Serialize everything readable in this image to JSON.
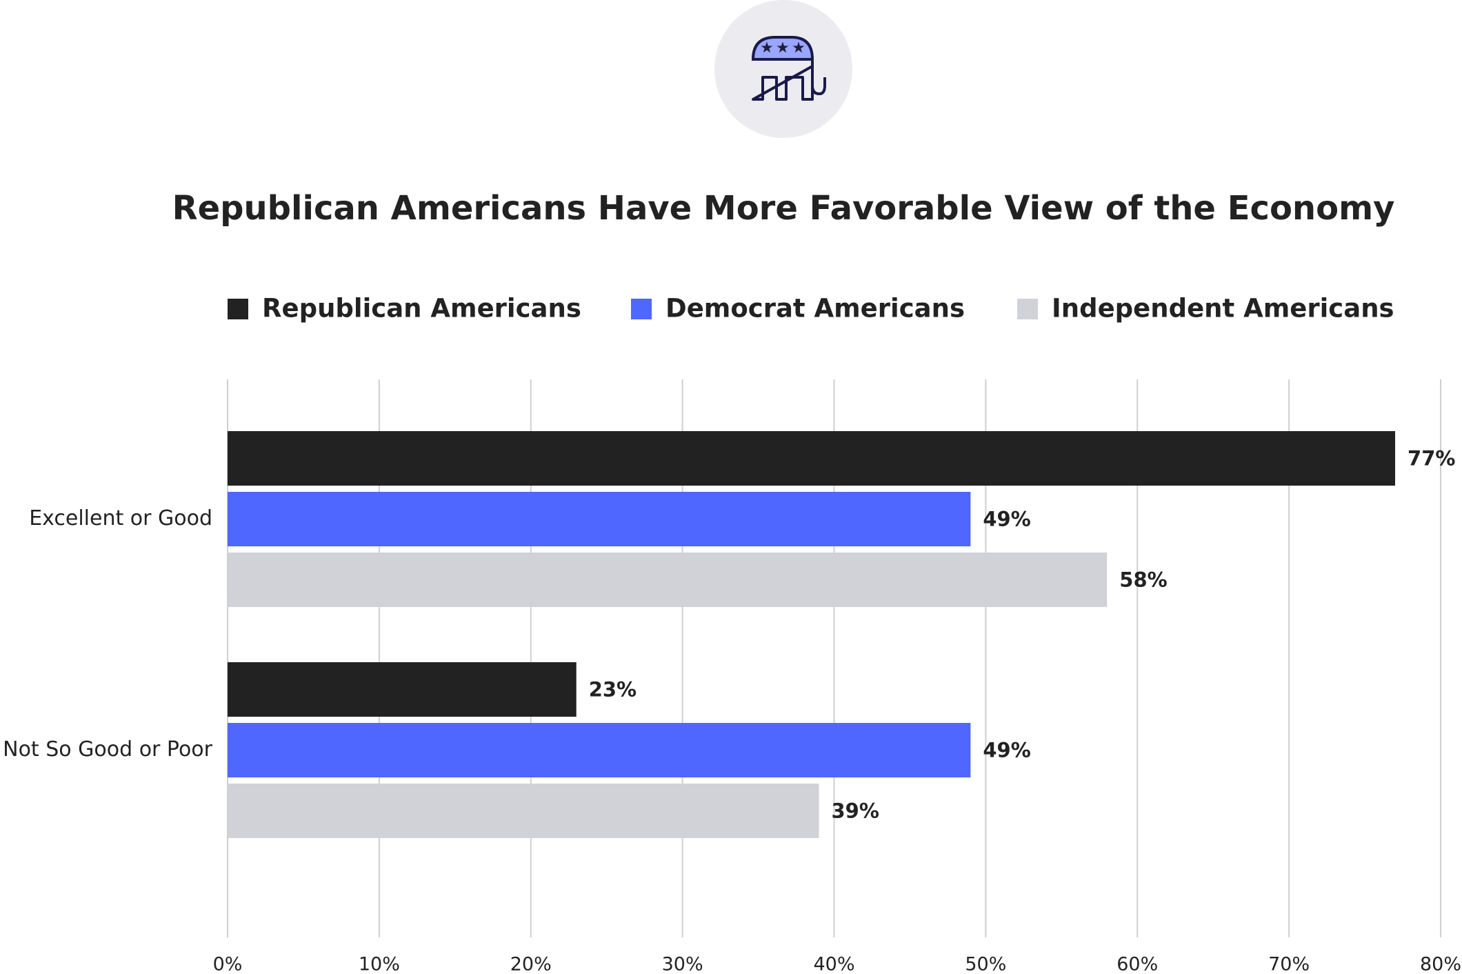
{
  "chart_data": {
    "type": "hbar",
    "title": "Republican Americans Have More Favorable View of the Economy",
    "categories": [
      "Excellent or Good",
      "Not So Good or Poor"
    ],
    "series": [
      {
        "name": "Republican Americans",
        "color": "#222222",
        "values": [
          77,
          23
        ],
        "value_labels": [
          "77%",
          "23%"
        ]
      },
      {
        "name": "Democrat Americans",
        "color": "#4f66ff",
        "values": [
          49,
          49
        ],
        "value_labels": [
          "49%",
          "49%"
        ]
      },
      {
        "name": "Independent Americans",
        "color": "#d1d1d8",
        "values": [
          58,
          39
        ],
        "value_labels": [
          "58%",
          "39%"
        ]
      }
    ],
    "xlim": [
      0,
      80
    ],
    "xticks": [
      {
        "value": 0,
        "label": "0%"
      },
      {
        "value": 10,
        "label": "10%"
      },
      {
        "value": 20,
        "label": "20%"
      },
      {
        "value": 30,
        "label": "30%"
      },
      {
        "value": 40,
        "label": "40%"
      },
      {
        "value": 50,
        "label": "50%"
      },
      {
        "value": 60,
        "label": "60%"
      },
      {
        "value": 70,
        "label": "70%"
      },
      {
        "value": 80,
        "label": "80%"
      }
    ],
    "grid": true
  }
}
